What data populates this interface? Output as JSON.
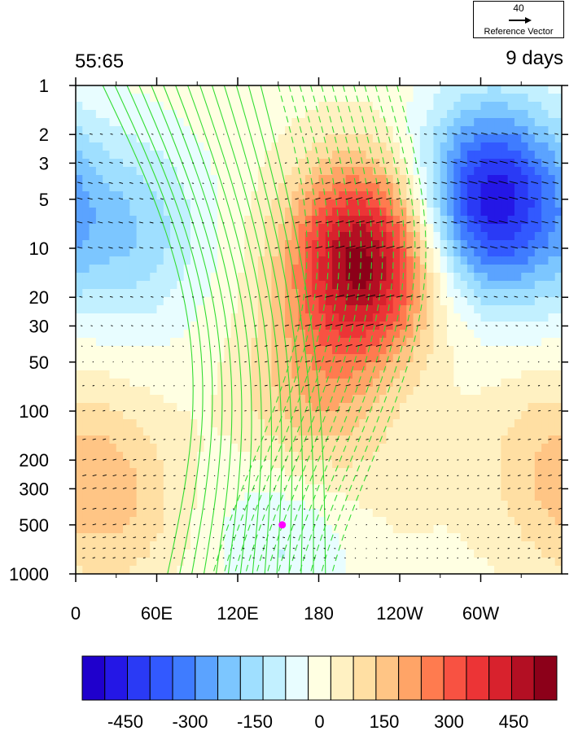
{
  "left_title": "55:65",
  "right_title": "9 days",
  "reference_vector": {
    "value": "40",
    "label": "Reference Vector"
  },
  "marker_color": "#ff00ff",
  "chart_data": {
    "type": "heatmap",
    "description_fields": {
      "fill": "filled contours (diverging blue-white-red)",
      "lines": "green contour lines, dashed for negative values",
      "vectors": "black wind arrows"
    },
    "x_ticks": [
      "0",
      "60E",
      "120E",
      "180",
      "120W",
      "60W"
    ],
    "x_tick_lon": [
      0,
      60,
      120,
      180,
      240,
      300
    ],
    "x_range": [
      0,
      360
    ],
    "y_ticks": [
      "1",
      "2",
      "3",
      "5",
      "10",
      "20",
      "30",
      "50",
      "100",
      "200",
      "300",
      "500",
      "1000"
    ],
    "y_tick_values": [
      1,
      2,
      3,
      5,
      10,
      20,
      30,
      50,
      100,
      200,
      300,
      500,
      1000
    ],
    "y_range": [
      1,
      1000
    ],
    "y_scale": "log",
    "y_inverted": true,
    "colorbar": {
      "labels": [
        "-450",
        "-300",
        "-150",
        "0",
        "150",
        "300",
        "450"
      ],
      "label_values": [
        -450,
        -300,
        -150,
        0,
        150,
        300,
        450
      ],
      "range": [
        -550,
        550
      ],
      "colors": [
        "#1f00cc",
        "#2417e6",
        "#2a3af5",
        "#3259ff",
        "#3f7cff",
        "#5ba3ff",
        "#7cc6ff",
        "#9fdfff",
        "#c2f0ff",
        "#e8fdff",
        "#ffffe2",
        "#fff1c2",
        "#ffdfa3",
        "#ffc585",
        "#ffa467",
        "#ff7b4f",
        "#f85242",
        "#ec3436",
        "#d8222d",
        "#b30f23",
        "#8c0019"
      ]
    },
    "filled_field": {
      "centers": [
        {
          "lon": 212,
          "p": 12,
          "value": 520
        },
        {
          "lon": 308,
          "p": 5,
          "value": -480
        },
        {
          "lon": 175,
          "p": 100,
          "value": 170
        },
        {
          "lon": 30,
          "p": 350,
          "value": 120
        },
        {
          "lon": 160,
          "p": 500,
          "value": -110
        },
        {
          "lon": 40,
          "p": 8,
          "value": -170
        },
        {
          "lon": 345,
          "p": 200,
          "value": 90
        },
        {
          "lon": 230,
          "p": 500,
          "value": 30
        }
      ]
    },
    "marker": {
      "lon": 153,
      "p": 500
    }
  }
}
